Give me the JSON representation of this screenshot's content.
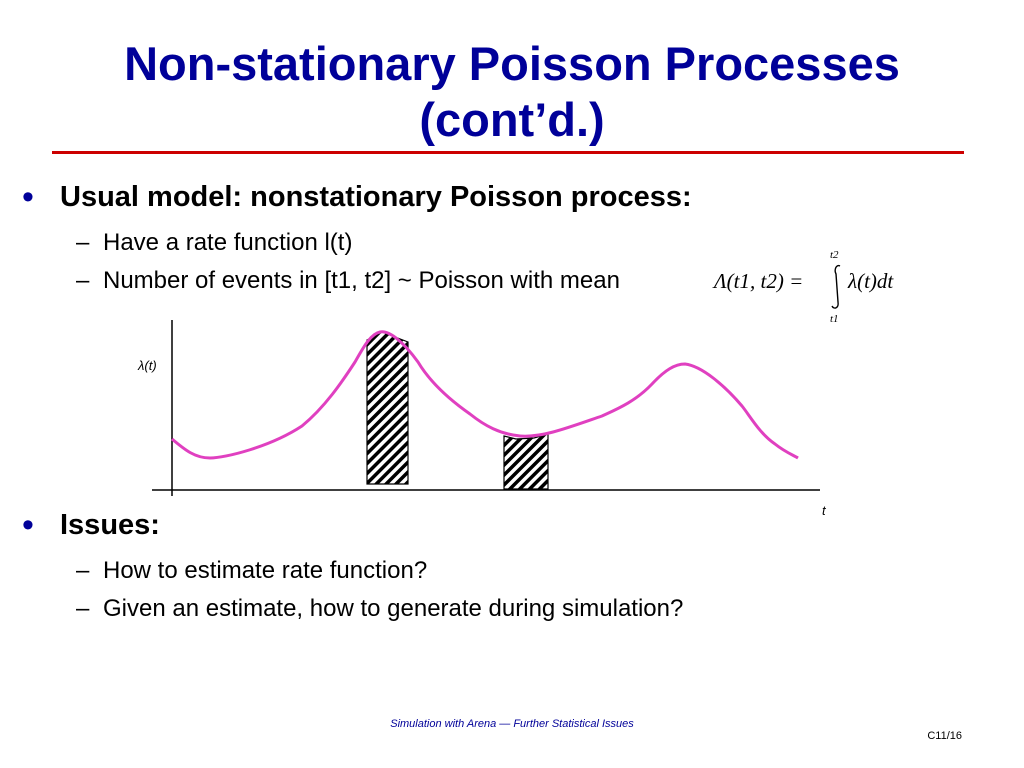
{
  "title": {
    "line1": "Non-stationary Poisson Processes",
    "line2": "(cont’d.)"
  },
  "bullets": [
    {
      "text": "Usual model:  nonstationary Poisson process:",
      "subs": [
        "Have a rate function l(t)",
        "Number of events in [t1, t2] ~ Poisson with mean"
      ]
    },
    {
      "text": "Issues:",
      "subs": [
        "How to estimate rate function?",
        "Given an estimate, how to generate during simulation?"
      ]
    }
  ],
  "bullet_symbol": "•",
  "dash_symbol": "–",
  "formula": {
    "lhs": "Λ(t1, t2) =",
    "upper_limit": "t2",
    "lower_limit": "t1",
    "integrand": "λ(t)dt"
  },
  "chart_data": {
    "type": "line",
    "ylabel": "λ(t)",
    "xlabel": "t",
    "shaded_intervals": 2,
    "curve_color": "#e040c0"
  },
  "footer": "Simulation with Arena — Further Statistical Issues",
  "slide_number": "C11/16",
  "colors": {
    "title": "#000099",
    "rule": "#cc0000",
    "curve": "#e040c0"
  }
}
